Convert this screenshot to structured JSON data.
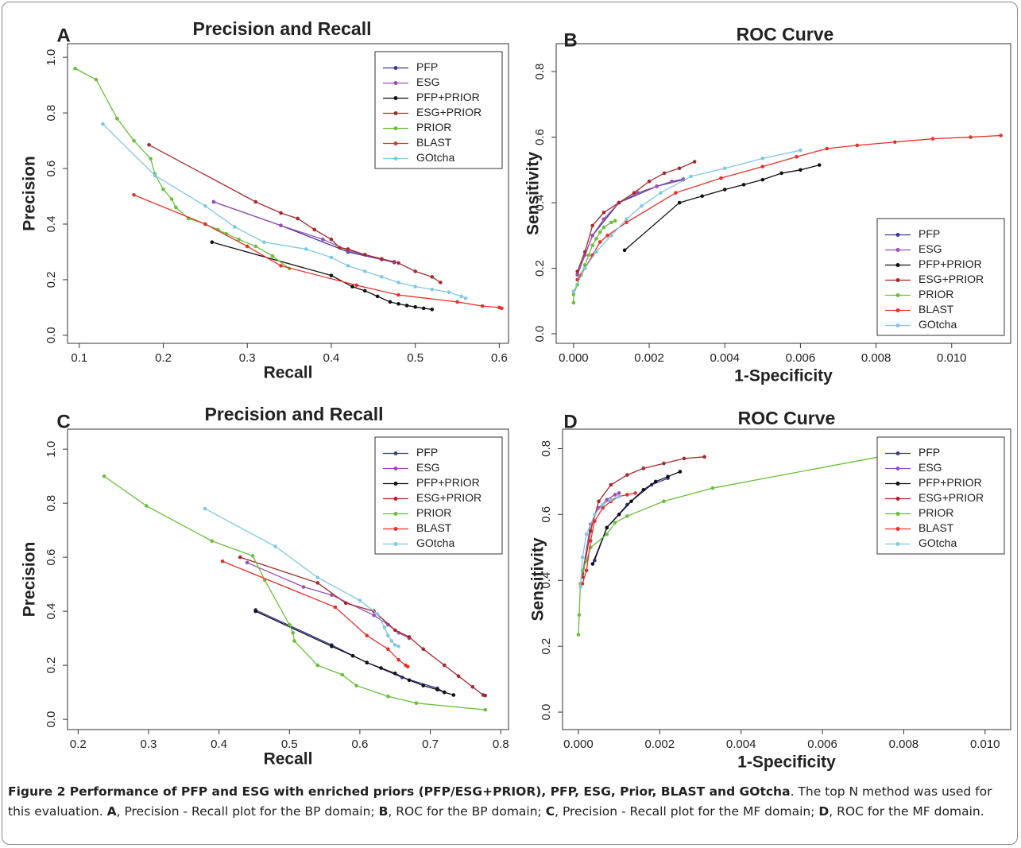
{
  "chart_data": [
    {
      "type": "line",
      "panel_label": "A",
      "title": "Precision and Recall",
      "x_label": "Recall",
      "y_label": "Precision",
      "xlim": [
        0.086,
        0.611
      ],
      "ylim": [
        -0.029,
        1.049
      ],
      "xticks": [
        0.1,
        0.2,
        0.3,
        0.4,
        0.5,
        0.6
      ],
      "yticks": [
        {
          "value": 0,
          "label": "0.0"
        },
        0.2,
        0.4,
        0.6,
        0.8,
        {
          "value": 1,
          "label": "1.0"
        }
      ],
      "legend": "top-right",
      "series": [
        {
          "name": "PFP",
          "color": "#3a3a9a",
          "x": [
            0.26,
            0.34,
            0.42,
            0.475
          ],
          "values": [
            0.48,
            0.395,
            0.3,
            0.262
          ]
        },
        {
          "name": "ESG",
          "color": "#9a4fb5",
          "x": [
            0.26,
            0.34,
            0.39,
            0.42,
            0.44,
            0.46,
            0.475
          ],
          "values": [
            0.48,
            0.395,
            0.345,
            0.305,
            0.29,
            0.272,
            0.265
          ]
        },
        {
          "name": "PFP+PRIOR",
          "color": "#111111",
          "x": [
            0.258,
            0.4,
            0.425,
            0.44,
            0.455,
            0.47,
            0.48,
            0.49,
            0.5,
            0.51,
            0.52
          ],
          "values": [
            0.335,
            0.215,
            0.175,
            0.16,
            0.14,
            0.12,
            0.113,
            0.107,
            0.102,
            0.097,
            0.093
          ]
        },
        {
          "name": "ESG+PRIOR",
          "color": "#a52a2a",
          "x": [
            0.183,
            0.31,
            0.34,
            0.36,
            0.38,
            0.4,
            0.41,
            0.42,
            0.44,
            0.46,
            0.48,
            0.5,
            0.52,
            0.53
          ],
          "values": [
            0.685,
            0.48,
            0.44,
            0.42,
            0.38,
            0.345,
            0.315,
            0.31,
            0.29,
            0.275,
            0.26,
            0.23,
            0.21,
            0.19
          ]
        },
        {
          "name": "PRIOR",
          "color": "#6abf3a",
          "x": [
            0.095,
            0.12,
            0.145,
            0.165,
            0.185,
            0.19,
            0.2,
            0.21,
            0.215,
            0.23,
            0.25,
            0.265,
            0.275,
            0.29,
            0.31,
            0.33,
            0.35
          ],
          "values": [
            0.96,
            0.92,
            0.78,
            0.7,
            0.635,
            0.58,
            0.525,
            0.49,
            0.46,
            0.42,
            0.4,
            0.38,
            0.365,
            0.345,
            0.32,
            0.285,
            0.24
          ]
        },
        {
          "name": "BLAST",
          "color": "#e8302a",
          "x": [
            0.165,
            0.25,
            0.3,
            0.34,
            0.43,
            0.48,
            0.55,
            0.58,
            0.6,
            0.603
          ],
          "values": [
            0.505,
            0.4,
            0.32,
            0.25,
            0.18,
            0.145,
            0.12,
            0.105,
            0.1,
            0.097
          ]
        },
        {
          "name": "GOtcha",
          "color": "#7ec8e3",
          "x": [
            0.128,
            0.19,
            0.25,
            0.285,
            0.32,
            0.37,
            0.4,
            0.42,
            0.44,
            0.46,
            0.48,
            0.5,
            0.52,
            0.54,
            0.555,
            0.56
          ],
          "values": [
            0.76,
            0.575,
            0.465,
            0.39,
            0.335,
            0.31,
            0.28,
            0.25,
            0.23,
            0.21,
            0.19,
            0.175,
            0.165,
            0.155,
            0.14,
            0.133
          ]
        }
      ]
    },
    {
      "type": "line",
      "panel_label": "B",
      "title": "ROC Curve",
      "x_label": "1-Specificity",
      "y_label": "Sensitivity",
      "xlim": [
        -0.00046,
        0.01156
      ],
      "ylim": [
        -0.029,
        0.885
      ],
      "xticks": [
        {
          "value": 0,
          "label": "0.000"
        },
        {
          "value": 0.002,
          "label": "0.002"
        },
        {
          "value": 0.004,
          "label": "0.004"
        },
        {
          "value": 0.006,
          "label": "0.006"
        },
        {
          "value": 0.008,
          "label": "0.008"
        },
        {
          "value": 0.01,
          "label": "0.010"
        }
      ],
      "yticks": [
        {
          "value": 0,
          "label": "0.0"
        },
        0.2,
        0.4,
        0.6,
        0.8
      ],
      "legend": "bottom-right",
      "series": [
        {
          "name": "PFP",
          "color": "#3a3a9a",
          "x": [
            0.0001,
            0.0005,
            0.0012,
            0.0022,
            0.0029
          ],
          "values": [
            0.18,
            0.3,
            0.4,
            0.45,
            0.47
          ]
        },
        {
          "name": "ESG",
          "color": "#9a4fb5",
          "x": [
            0.0001,
            0.0003,
            0.0005,
            0.0008,
            0.0012,
            0.0017,
            0.0022,
            0.0026,
            0.0029
          ],
          "values": [
            0.18,
            0.24,
            0.3,
            0.35,
            0.4,
            0.43,
            0.45,
            0.465,
            0.472
          ]
        },
        {
          "name": "PFP+PRIOR",
          "color": "#111111",
          "x": [
            0.00135,
            0.0028,
            0.0034,
            0.004,
            0.0045,
            0.005,
            0.0055,
            0.006,
            0.0065
          ],
          "values": [
            0.255,
            0.4,
            0.42,
            0.44,
            0.455,
            0.47,
            0.49,
            0.5,
            0.515
          ]
        },
        {
          "name": "ESG+PRIOR",
          "color": "#a52a2a",
          "x": [
            0.0001,
            0.0003,
            0.0005,
            0.0008,
            0.0012,
            0.0016,
            0.002,
            0.0024,
            0.0028,
            0.0032
          ],
          "values": [
            0.19,
            0.25,
            0.33,
            0.37,
            0.4,
            0.43,
            0.465,
            0.49,
            0.505,
            0.525
          ]
        },
        {
          "name": "PRIOR",
          "color": "#6abf3a",
          "x": [
            0,
            0,
            0.0001,
            0.0002,
            0.0003,
            0.0004,
            0.0005,
            0.0006,
            0.0007,
            0.0008,
            0.001,
            0.0011
          ],
          "values": [
            0.095,
            0.12,
            0.15,
            0.18,
            0.21,
            0.24,
            0.27,
            0.29,
            0.31,
            0.325,
            0.34,
            0.345
          ]
        },
        {
          "name": "BLAST",
          "color": "#e8302a",
          "x": [
            0.0001,
            0.0003,
            0.0005,
            0.0007,
            0.0009,
            0.0014,
            0.0027,
            0.0039,
            0.005,
            0.0059,
            0.0067,
            0.0075,
            0.0085,
            0.0095,
            0.0105,
            0.0113
          ],
          "values": [
            0.165,
            0.2,
            0.24,
            0.28,
            0.3,
            0.34,
            0.43,
            0.475,
            0.51,
            0.54,
            0.565,
            0.575,
            0.585,
            0.595,
            0.6,
            0.605
          ]
        },
        {
          "name": "GOtcha",
          "color": "#7ec8e3",
          "x": [
            0,
            0.0003,
            0.0006,
            0.001,
            0.0014,
            0.0018,
            0.0023,
            0.0031,
            0.004,
            0.005,
            0.006
          ],
          "values": [
            0.13,
            0.2,
            0.25,
            0.3,
            0.35,
            0.39,
            0.43,
            0.48,
            0.505,
            0.535,
            0.56
          ]
        }
      ]
    },
    {
      "type": "line",
      "panel_label": "C",
      "title": "Precision and Recall",
      "x_label": "Recall",
      "y_label": "Precision",
      "xlim": [
        0.185,
        0.811
      ],
      "ylim": [
        -0.038,
        1.074
      ],
      "xticks": [
        0.2,
        0.3,
        0.4,
        0.5,
        0.6,
        0.7,
        0.8
      ],
      "yticks": [
        {
          "value": 0,
          "label": "0.0"
        },
        0.2,
        0.4,
        0.6,
        0.8,
        {
          "value": 1,
          "label": "1.0"
        }
      ],
      "legend": "top-right",
      "series": [
        {
          "name": "PFP",
          "color": "#3a3a9a",
          "x": [
            0.452,
            0.56,
            0.61,
            0.66,
            0.71,
            0.72
          ],
          "values": [
            0.405,
            0.275,
            0.21,
            0.155,
            0.115,
            0.1
          ]
        },
        {
          "name": "ESG",
          "color": "#9a4fb5",
          "x": [
            0.44,
            0.52,
            0.56,
            0.62,
            0.64,
            0.655,
            0.67
          ],
          "values": [
            0.58,
            0.49,
            0.46,
            0.385,
            0.35,
            0.32,
            0.3
          ]
        },
        {
          "name": "PFP+PRIOR",
          "color": "#111111",
          "x": [
            0.452,
            0.56,
            0.59,
            0.61,
            0.63,
            0.65,
            0.67,
            0.69,
            0.71,
            0.72,
            0.733
          ],
          "values": [
            0.4,
            0.27,
            0.235,
            0.21,
            0.19,
            0.17,
            0.145,
            0.125,
            0.11,
            0.1,
            0.09
          ]
        },
        {
          "name": "ESG+PRIOR",
          "color": "#a52a2a",
          "x": [
            0.43,
            0.54,
            0.58,
            0.62,
            0.65,
            0.67,
            0.69,
            0.72,
            0.74,
            0.76,
            0.775,
            0.778
          ],
          "values": [
            0.6,
            0.505,
            0.43,
            0.4,
            0.33,
            0.305,
            0.26,
            0.2,
            0.16,
            0.12,
            0.09,
            0.088
          ]
        },
        {
          "name": "PRIOR",
          "color": "#6abf3a",
          "x": [
            0.237,
            0.297,
            0.39,
            0.448,
            0.465,
            0.5,
            0.505,
            0.507,
            0.54,
            0.575,
            0.595,
            0.64,
            0.68,
            0.778
          ],
          "values": [
            0.9,
            0.79,
            0.66,
            0.605,
            0.515,
            0.35,
            0.32,
            0.29,
            0.2,
            0.165,
            0.125,
            0.085,
            0.06,
            0.035
          ]
        },
        {
          "name": "BLAST",
          "color": "#e8302a",
          "x": [
            0.405,
            0.565,
            0.61,
            0.64,
            0.655,
            0.665,
            0.668
          ],
          "values": [
            0.585,
            0.415,
            0.31,
            0.26,
            0.22,
            0.2,
            0.195
          ]
        },
        {
          "name": "GOtcha",
          "color": "#7ec8e3",
          "x": [
            0.38,
            0.48,
            0.54,
            0.6,
            0.625,
            0.635,
            0.64,
            0.645,
            0.65,
            0.655
          ],
          "values": [
            0.78,
            0.64,
            0.525,
            0.44,
            0.39,
            0.34,
            0.31,
            0.29,
            0.275,
            0.27
          ]
        }
      ]
    },
    {
      "type": "line",
      "panel_label": "D",
      "title": "ROC Curve",
      "x_label": "1-Specificity",
      "y_label": "Sensitivity",
      "xlim": [
        -0.00039,
        0.01063
      ],
      "ylim": [
        -0.053,
        0.859
      ],
      "xticks": [
        {
          "value": 0,
          "label": "0.000"
        },
        {
          "value": 0.002,
          "label": "0.002"
        },
        {
          "value": 0.004,
          "label": "0.004"
        },
        {
          "value": 0.006,
          "label": "0.006"
        },
        {
          "value": 0.008,
          "label": "0.008"
        },
        {
          "value": 0.01,
          "label": "0.010"
        }
      ],
      "yticks": [
        {
          "value": 0,
          "label": "0.0"
        },
        0.2,
        0.4,
        0.6,
        0.8
      ],
      "legend": "top-right",
      "series": [
        {
          "name": "PFP",
          "color": "#3a3a9a",
          "x": [
            0.0004,
            0.0007,
            0.0012,
            0.0018,
            0.0022
          ],
          "values": [
            0.46,
            0.56,
            0.63,
            0.69,
            0.71
          ]
        },
        {
          "name": "ESG",
          "color": "#9a4fb5",
          "x": [
            0.0001,
            0.0003,
            0.0005,
            0.0007,
            0.0009,
            0.001
          ],
          "values": [
            0.42,
            0.57,
            0.62,
            0.645,
            0.66,
            0.665
          ]
        },
        {
          "name": "PFP+PRIOR",
          "color": "#111111",
          "x": [
            0.00035,
            0.0007,
            0.001,
            0.0013,
            0.0016,
            0.0019,
            0.0022,
            0.0025
          ],
          "values": [
            0.45,
            0.56,
            0.6,
            0.64,
            0.675,
            0.7,
            0.715,
            0.73
          ]
        },
        {
          "name": "ESG+PRIOR",
          "color": "#a52a2a",
          "x": [
            0.0001,
            0.0003,
            0.0005,
            0.0008,
            0.0012,
            0.0016,
            0.0021,
            0.0026,
            0.0031
          ],
          "values": [
            0.41,
            0.55,
            0.64,
            0.69,
            0.72,
            0.74,
            0.755,
            0.77,
            0.775
          ]
        },
        {
          "name": "PRIOR",
          "color": "#6abf3a",
          "x": [
            0,
            2e-05,
            5e-05,
            0.0001,
            0.0002,
            0.0003,
            0.0007,
            0.0009,
            0.0012,
            0.0021,
            0.0033,
            0.0074
          ],
          "values": [
            0.235,
            0.295,
            0.39,
            0.43,
            0.46,
            0.5,
            0.54,
            0.575,
            0.595,
            0.64,
            0.68,
            0.775
          ]
        },
        {
          "name": "BLAST",
          "color": "#e8302a",
          "x": [
            0.0001,
            0.0002,
            0.0003,
            0.0004,
            0.0006,
            0.0008,
            0.001,
            0.0012,
            0.0014
          ],
          "values": [
            0.39,
            0.43,
            0.52,
            0.58,
            0.62,
            0.64,
            0.655,
            0.66,
            0.665
          ]
        },
        {
          "name": "GOtcha",
          "color": "#7ec8e3",
          "x": [
            5e-05,
            0.0001,
            0.0002,
            0.0004,
            0.0006,
            0.0008,
            0.001
          ],
          "values": [
            0.38,
            0.47,
            0.54,
            0.6,
            0.63,
            0.645,
            0.655
          ]
        }
      ]
    }
  ],
  "caption": [
    "Figure 2 Performance of PFP and ESG with enriched priors (PFP/ESG+PRIOR), PFP, ESG, Prior, BLAST and GOtcha",
    ". The top N method was used for this evaluation. ",
    "A",
    ", Precision - Recall plot for the BP domain; ",
    "B",
    ", ROC for the BP domain; ",
    "C",
    ", Precision - Recall plot for the MF domain; ",
    "D",
    ", ROC for the MF domain."
  ]
}
